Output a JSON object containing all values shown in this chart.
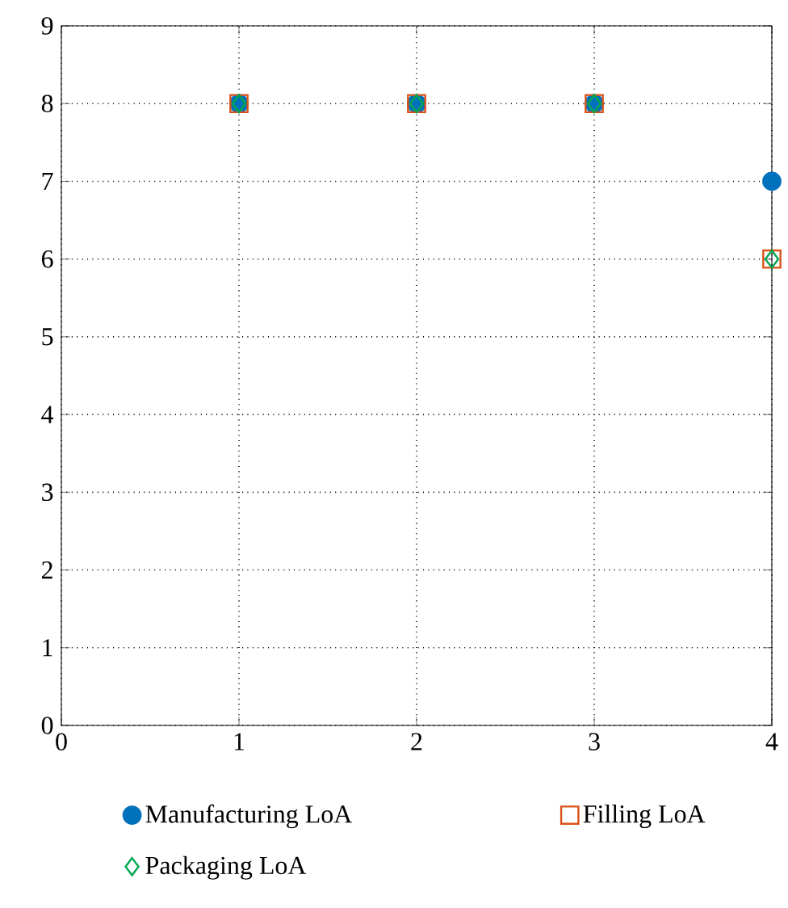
{
  "chart_data": {
    "type": "scatter",
    "x": [
      1,
      2,
      3,
      4
    ],
    "series": [
      {
        "name": "Manufacturing LoA",
        "color": "#0072bd",
        "marker": "circle",
        "values": [
          8,
          8,
          8,
          7
        ]
      },
      {
        "name": "Filling LoA",
        "color": "#d95319",
        "marker": "square",
        "values": [
          8,
          8,
          8,
          6
        ]
      },
      {
        "name": "Packaging LoA",
        "color": "#00a64f",
        "marker": "diamond",
        "values": [
          8,
          8,
          8,
          6
        ]
      }
    ],
    "xlim": [
      0,
      4
    ],
    "ylim": [
      0,
      9
    ],
    "xticks": [
      0,
      1,
      2,
      3,
      4
    ],
    "yticks": [
      0,
      1,
      2,
      3,
      4,
      5,
      6,
      7,
      8,
      9
    ],
    "grid": true,
    "legend": "bottom"
  }
}
